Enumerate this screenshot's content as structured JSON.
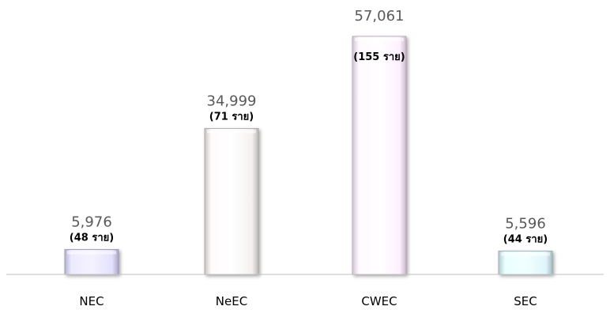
{
  "chart_data": {
    "type": "bar",
    "categories": [
      "NEC",
      "NeEC",
      "CWEC",
      "SEC"
    ],
    "values": [
      5976,
      34999,
      57061,
      5596
    ],
    "value_labels": [
      "5,976",
      "34,999",
      "57,061",
      "5,596"
    ],
    "count_labels": [
      "(48 ราย)",
      "(71 ราย)",
      "(155 ราย)",
      "(44 ราย)"
    ],
    "bar_colors": [
      "#d9d6f3",
      "#ebe7e7",
      "#f7e6f8",
      "#d6ecf0"
    ],
    "title": "",
    "xlabel": "",
    "ylabel": "",
    "ylim": [
      0,
      57061
    ],
    "grid": false,
    "legend": "none"
  }
}
